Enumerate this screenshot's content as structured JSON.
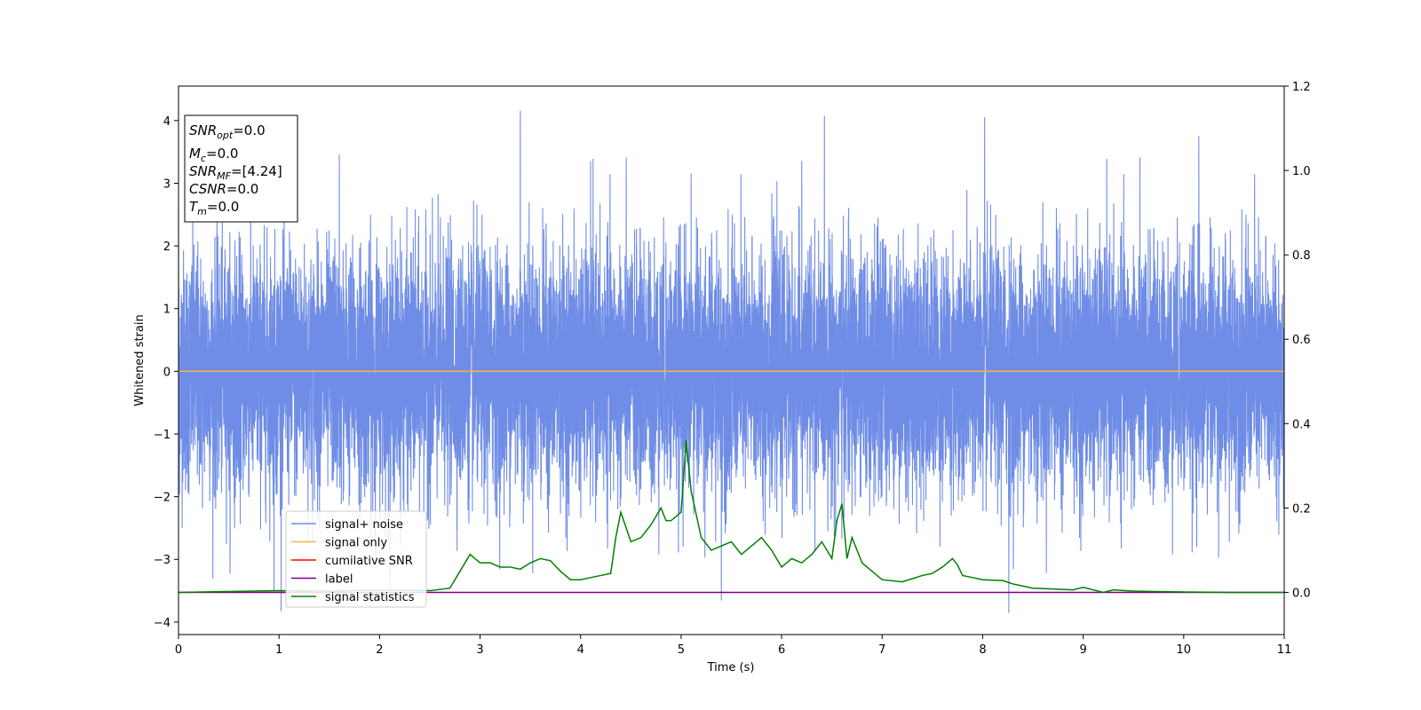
{
  "chart_data": {
    "type": "line",
    "xlabel": "Time (s)",
    "ylabel": "Whitened strain",
    "xlim": [
      0,
      11
    ],
    "ylim": [
      -4.2,
      4.55
    ],
    "y2lim": [
      -0.1,
      1.2
    ],
    "x_ticks": [
      "0",
      "1",
      "2",
      "3",
      "4",
      "5",
      "6",
      "7",
      "8",
      "9",
      "10",
      "11"
    ],
    "y_ticks": [
      "−4",
      "−3",
      "−2",
      "−1",
      "0",
      "1",
      "2",
      "3",
      "4"
    ],
    "y2_ticks": [
      "0.0",
      "0.2",
      "0.4",
      "0.6",
      "0.8",
      "1.0",
      "1.2"
    ],
    "grid": false,
    "legend_position": "lower-left",
    "info_box": {
      "lines": [
        {
          "main": "SNR",
          "sub": "opt",
          "rest": "=0.0"
        },
        {
          "main": "M",
          "sub": "c",
          "rest": "=0.0"
        },
        {
          "main": "SNR",
          "sub": "MF",
          "rest": "=[4.24]"
        },
        {
          "main": "CSNR",
          "sub": "",
          "rest": "=0.0"
        },
        {
          "main": "T",
          "sub": "m",
          "rest": "=0.0"
        }
      ]
    },
    "series": [
      {
        "name": "signal+ noise",
        "color": "#6f8de6",
        "axis": "left",
        "style": "dense gaussian noise, ~±2.5 envelope",
        "sample_rate_hz": 1024,
        "std": 1.0,
        "peaks": [
          [
            0.0,
            2.6
          ],
          [
            0.95,
            -3.5
          ],
          [
            1.6,
            3.45
          ],
          [
            3.4,
            4.15
          ],
          [
            4.1,
            3.35
          ],
          [
            5.05,
            -1.3
          ],
          [
            5.1,
            3.15
          ],
          [
            5.4,
            -3.65
          ],
          [
            6.2,
            3.35
          ],
          [
            8.02,
            4.05
          ],
          [
            8.26,
            -3.85
          ],
          [
            10.15,
            3.75
          ]
        ]
      },
      {
        "name": "signal only",
        "color": "#ffb347",
        "axis": "left",
        "x": [
          0,
          11
        ],
        "y": [
          0,
          0
        ]
      },
      {
        "name": "cumilative SNR",
        "color": "#ff0000",
        "axis": "right",
        "x": [],
        "y": []
      },
      {
        "name": "label",
        "color": "#800080",
        "axis": "right",
        "x": [
          0,
          11
        ],
        "y": [
          0,
          0
        ]
      },
      {
        "name": "signal statistics",
        "color": "#008000",
        "axis": "right",
        "x": [
          0,
          0.5,
          1.0,
          1.5,
          2.0,
          2.5,
          2.7,
          2.8,
          2.9,
          3.0,
          3.1,
          3.2,
          3.3,
          3.4,
          3.5,
          3.6,
          3.7,
          3.8,
          3.9,
          4.0,
          4.1,
          4.2,
          4.3,
          4.35,
          4.4,
          4.5,
          4.6,
          4.7,
          4.8,
          4.85,
          4.9,
          5.0,
          5.05,
          5.1,
          5.2,
          5.3,
          5.4,
          5.5,
          5.6,
          5.7,
          5.8,
          5.9,
          6.0,
          6.1,
          6.2,
          6.3,
          6.4,
          6.5,
          6.55,
          6.6,
          6.65,
          6.7,
          6.8,
          6.9,
          7.0,
          7.2,
          7.4,
          7.5,
          7.6,
          7.7,
          7.75,
          7.8,
          7.9,
          8.0,
          8.2,
          8.3,
          8.4,
          8.5,
          8.7,
          8.9,
          9.0,
          9.2,
          9.3,
          9.5,
          9.7,
          10.0,
          10.5,
          11.0
        ],
        "y": [
          0.0,
          0.002,
          0.004,
          0.003,
          0.006,
          0.004,
          0.01,
          0.05,
          0.09,
          0.07,
          0.07,
          0.06,
          0.06,
          0.055,
          0.07,
          0.08,
          0.075,
          0.05,
          0.03,
          0.03,
          0.035,
          0.04,
          0.045,
          0.13,
          0.19,
          0.12,
          0.13,
          0.16,
          0.2,
          0.17,
          0.17,
          0.19,
          0.36,
          0.24,
          0.13,
          0.1,
          0.11,
          0.12,
          0.09,
          0.11,
          0.13,
          0.1,
          0.06,
          0.08,
          0.07,
          0.09,
          0.12,
          0.08,
          0.17,
          0.21,
          0.08,
          0.13,
          0.07,
          0.05,
          0.03,
          0.025,
          0.04,
          0.045,
          0.06,
          0.08,
          0.065,
          0.04,
          0.035,
          0.03,
          0.028,
          0.02,
          0.015,
          0.01,
          0.008,
          0.006,
          0.012,
          0.0,
          0.006,
          0.003,
          0.002,
          0.001,
          0.0,
          0.0
        ]
      }
    ]
  }
}
